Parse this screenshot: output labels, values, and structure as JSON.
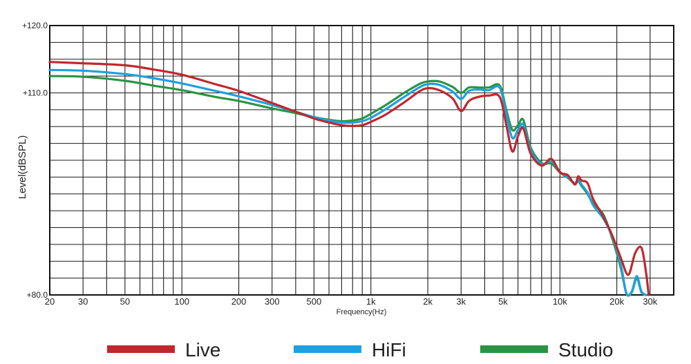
{
  "chart_data": {
    "type": "line",
    "title": "",
    "xlabel": "Frequency(Hz)",
    "ylabel": "Level(dBSPL)",
    "x_scale": "log",
    "xlim": [
      20,
      40000
    ],
    "ylim": [
      80,
      120
    ],
    "grid": true,
    "legend_position": "bottom",
    "x_ticks": [
      {
        "value": 20,
        "label": "20"
      },
      {
        "value": 30,
        "label": "30"
      },
      {
        "value": 50,
        "label": "50"
      },
      {
        "value": 100,
        "label": "100"
      },
      {
        "value": 200,
        "label": "200"
      },
      {
        "value": 300,
        "label": "300"
      },
      {
        "value": 500,
        "label": "500"
      },
      {
        "value": 1000,
        "label": "1k"
      },
      {
        "value": 2000,
        "label": "2k"
      },
      {
        "value": 3000,
        "label": "3k"
      },
      {
        "value": 5000,
        "label": "5k"
      },
      {
        "value": 10000,
        "label": "10k"
      },
      {
        "value": 20000,
        "label": "20k"
      },
      {
        "value": 30000,
        "label": "30k"
      }
    ],
    "y_ticks": [
      {
        "value": 80,
        "label": "+80.0"
      },
      {
        "value": 110,
        "label": "+110.0"
      },
      {
        "value": 120,
        "label": "+120.0"
      }
    ],
    "series": [
      {
        "name": "Live",
        "color": "#c1272d",
        "x": [
          20,
          30,
          50,
          70,
          100,
          150,
          200,
          300,
          400,
          500,
          600,
          700,
          800,
          900,
          1000,
          1200,
          1500,
          1800,
          2000,
          2300,
          2700,
          3000,
          3300,
          3700,
          4200,
          4800,
          5200,
          5600,
          6000,
          6400,
          7000,
          8000,
          9000,
          10000,
          11000,
          12000,
          12500,
          13000,
          14000,
          15000,
          17000,
          19000,
          21000,
          23000,
          25000,
          27000,
          28500,
          29500
        ],
        "y": [
          114.6,
          114.4,
          114.1,
          113.5,
          112.7,
          111.3,
          110.3,
          108.5,
          107.2,
          106.2,
          105.6,
          105.2,
          105.1,
          105.2,
          105.7,
          106.8,
          108.6,
          110.2,
          110.7,
          110.4,
          109.2,
          107.3,
          108.8,
          109.4,
          109.6,
          109.4,
          105.3,
          101.3,
          103.6,
          104.7,
          101.0,
          99.2,
          100.2,
          98.2,
          97.8,
          96.4,
          97.6,
          97.0,
          96.6,
          94.2,
          91.6,
          88.7,
          85.5,
          83.0,
          86.2,
          87.0,
          83.5,
          80.0
        ]
      },
      {
        "name": "HiFi",
        "color": "#1fa0e0",
        "x": [
          20,
          30,
          50,
          70,
          100,
          150,
          200,
          300,
          400,
          500,
          600,
          700,
          800,
          900,
          1000,
          1200,
          1500,
          1800,
          2000,
          2300,
          2700,
          3000,
          3300,
          3700,
          4200,
          4800,
          5200,
          5600,
          6000,
          6400,
          7000,
          8000,
          9000,
          10000,
          11000,
          12000,
          12500,
          13000,
          14000,
          15000,
          17000,
          19000,
          21000,
          22500,
          24000,
          25500,
          27000,
          28500
        ],
        "y": [
          113.4,
          113.3,
          112.8,
          112.2,
          111.4,
          110.3,
          109.5,
          108.2,
          107.2,
          106.4,
          105.9,
          105.6,
          105.6,
          105.8,
          106.3,
          107.6,
          109.4,
          110.8,
          111.3,
          111.2,
          110.2,
          109.1,
          110.3,
          110.5,
          110.4,
          110.8,
          106.8,
          103.3,
          104.5,
          105.3,
          101.5,
          99.4,
          99.9,
          98.3,
          97.5,
          96.6,
          97.2,
          96.4,
          95.2,
          93.3,
          91.3,
          88.5,
          84.5,
          80.2,
          80.5,
          82.8,
          80.5,
          80.0
        ]
      },
      {
        "name": "Studio",
        "color": "#2a9445",
        "x": [
          20,
          30,
          50,
          70,
          100,
          150,
          200,
          300,
          400,
          500,
          600,
          700,
          800,
          900,
          1000,
          1200,
          1500,
          1800,
          2000,
          2300,
          2700,
          3000,
          3300,
          3700,
          4200,
          4800,
          5200,
          5600,
          6000,
          6400,
          7000,
          8000,
          9000,
          10000,
          11000,
          12000,
          12500,
          13000,
          14000,
          15000,
          17000,
          19000,
          21000,
          22500,
          24000,
          25500,
          27000,
          28500
        ],
        "y": [
          112.5,
          112.4,
          111.8,
          111.1,
          110.4,
          109.4,
          108.8,
          107.7,
          107.0,
          106.4,
          106.0,
          105.8,
          105.9,
          106.2,
          106.9,
          108.2,
          110.0,
          111.3,
          111.7,
          111.7,
          110.9,
          110.0,
          110.8,
          110.8,
          110.8,
          111.1,
          107.5,
          104.5,
          105.2,
          106.0,
          101.9,
          99.6,
          99.5,
          98.2,
          97.4,
          96.5,
          96.9,
          96.2,
          95.0,
          93.6,
          91.9,
          88.2,
          84.0,
          80.2,
          80.4,
          82.5,
          80.4,
          80.0
        ]
      }
    ]
  }
}
